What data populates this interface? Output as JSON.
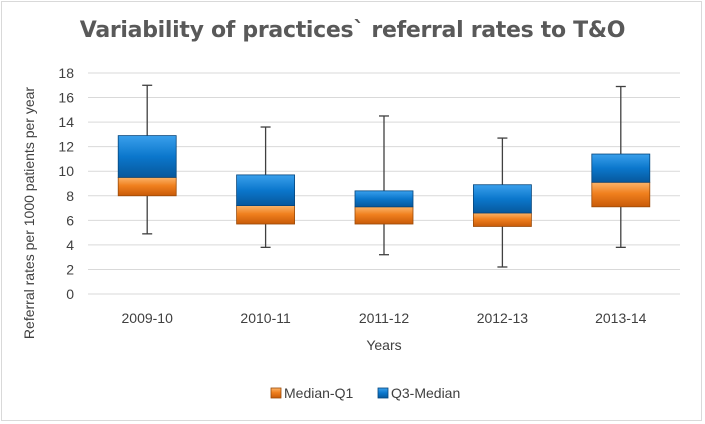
{
  "chart_data": {
    "type": "box",
    "title": "Variability of practices` referral rates to T&O",
    "xlabel": "Years",
    "ylabel": "Referral rates per 1000 patients per year",
    "ylim": [
      0,
      18
    ],
    "yticks": [
      0,
      2,
      4,
      6,
      8,
      10,
      12,
      14,
      16,
      18
    ],
    "grid": true,
    "legend_position": "bottom",
    "categories": [
      "2009-10",
      "2010-11",
      "2011-12",
      "2012-13",
      "2013-14"
    ],
    "series": [
      {
        "name": "Median-Q1",
        "color": "#e36c0a"
      },
      {
        "name": "Q3-Median",
        "color": "#0070c0"
      }
    ],
    "boxes": [
      {
        "category": "2009-10",
        "min": 4.9,
        "q1": 8.0,
        "median": 9.5,
        "q3": 12.9,
        "max": 17.0
      },
      {
        "category": "2010-11",
        "min": 3.8,
        "q1": 5.7,
        "median": 7.2,
        "q3": 9.7,
        "max": 13.6
      },
      {
        "category": "2011-12",
        "min": 3.2,
        "q1": 5.7,
        "median": 7.1,
        "q3": 8.4,
        "max": 14.5
      },
      {
        "category": "2012-13",
        "min": 2.2,
        "q1": 5.5,
        "median": 6.6,
        "q3": 8.9,
        "max": 12.7
      },
      {
        "category": "2013-14",
        "min": 3.8,
        "q1": 7.1,
        "median": 9.1,
        "q3": 11.4,
        "max": 16.9
      }
    ]
  }
}
